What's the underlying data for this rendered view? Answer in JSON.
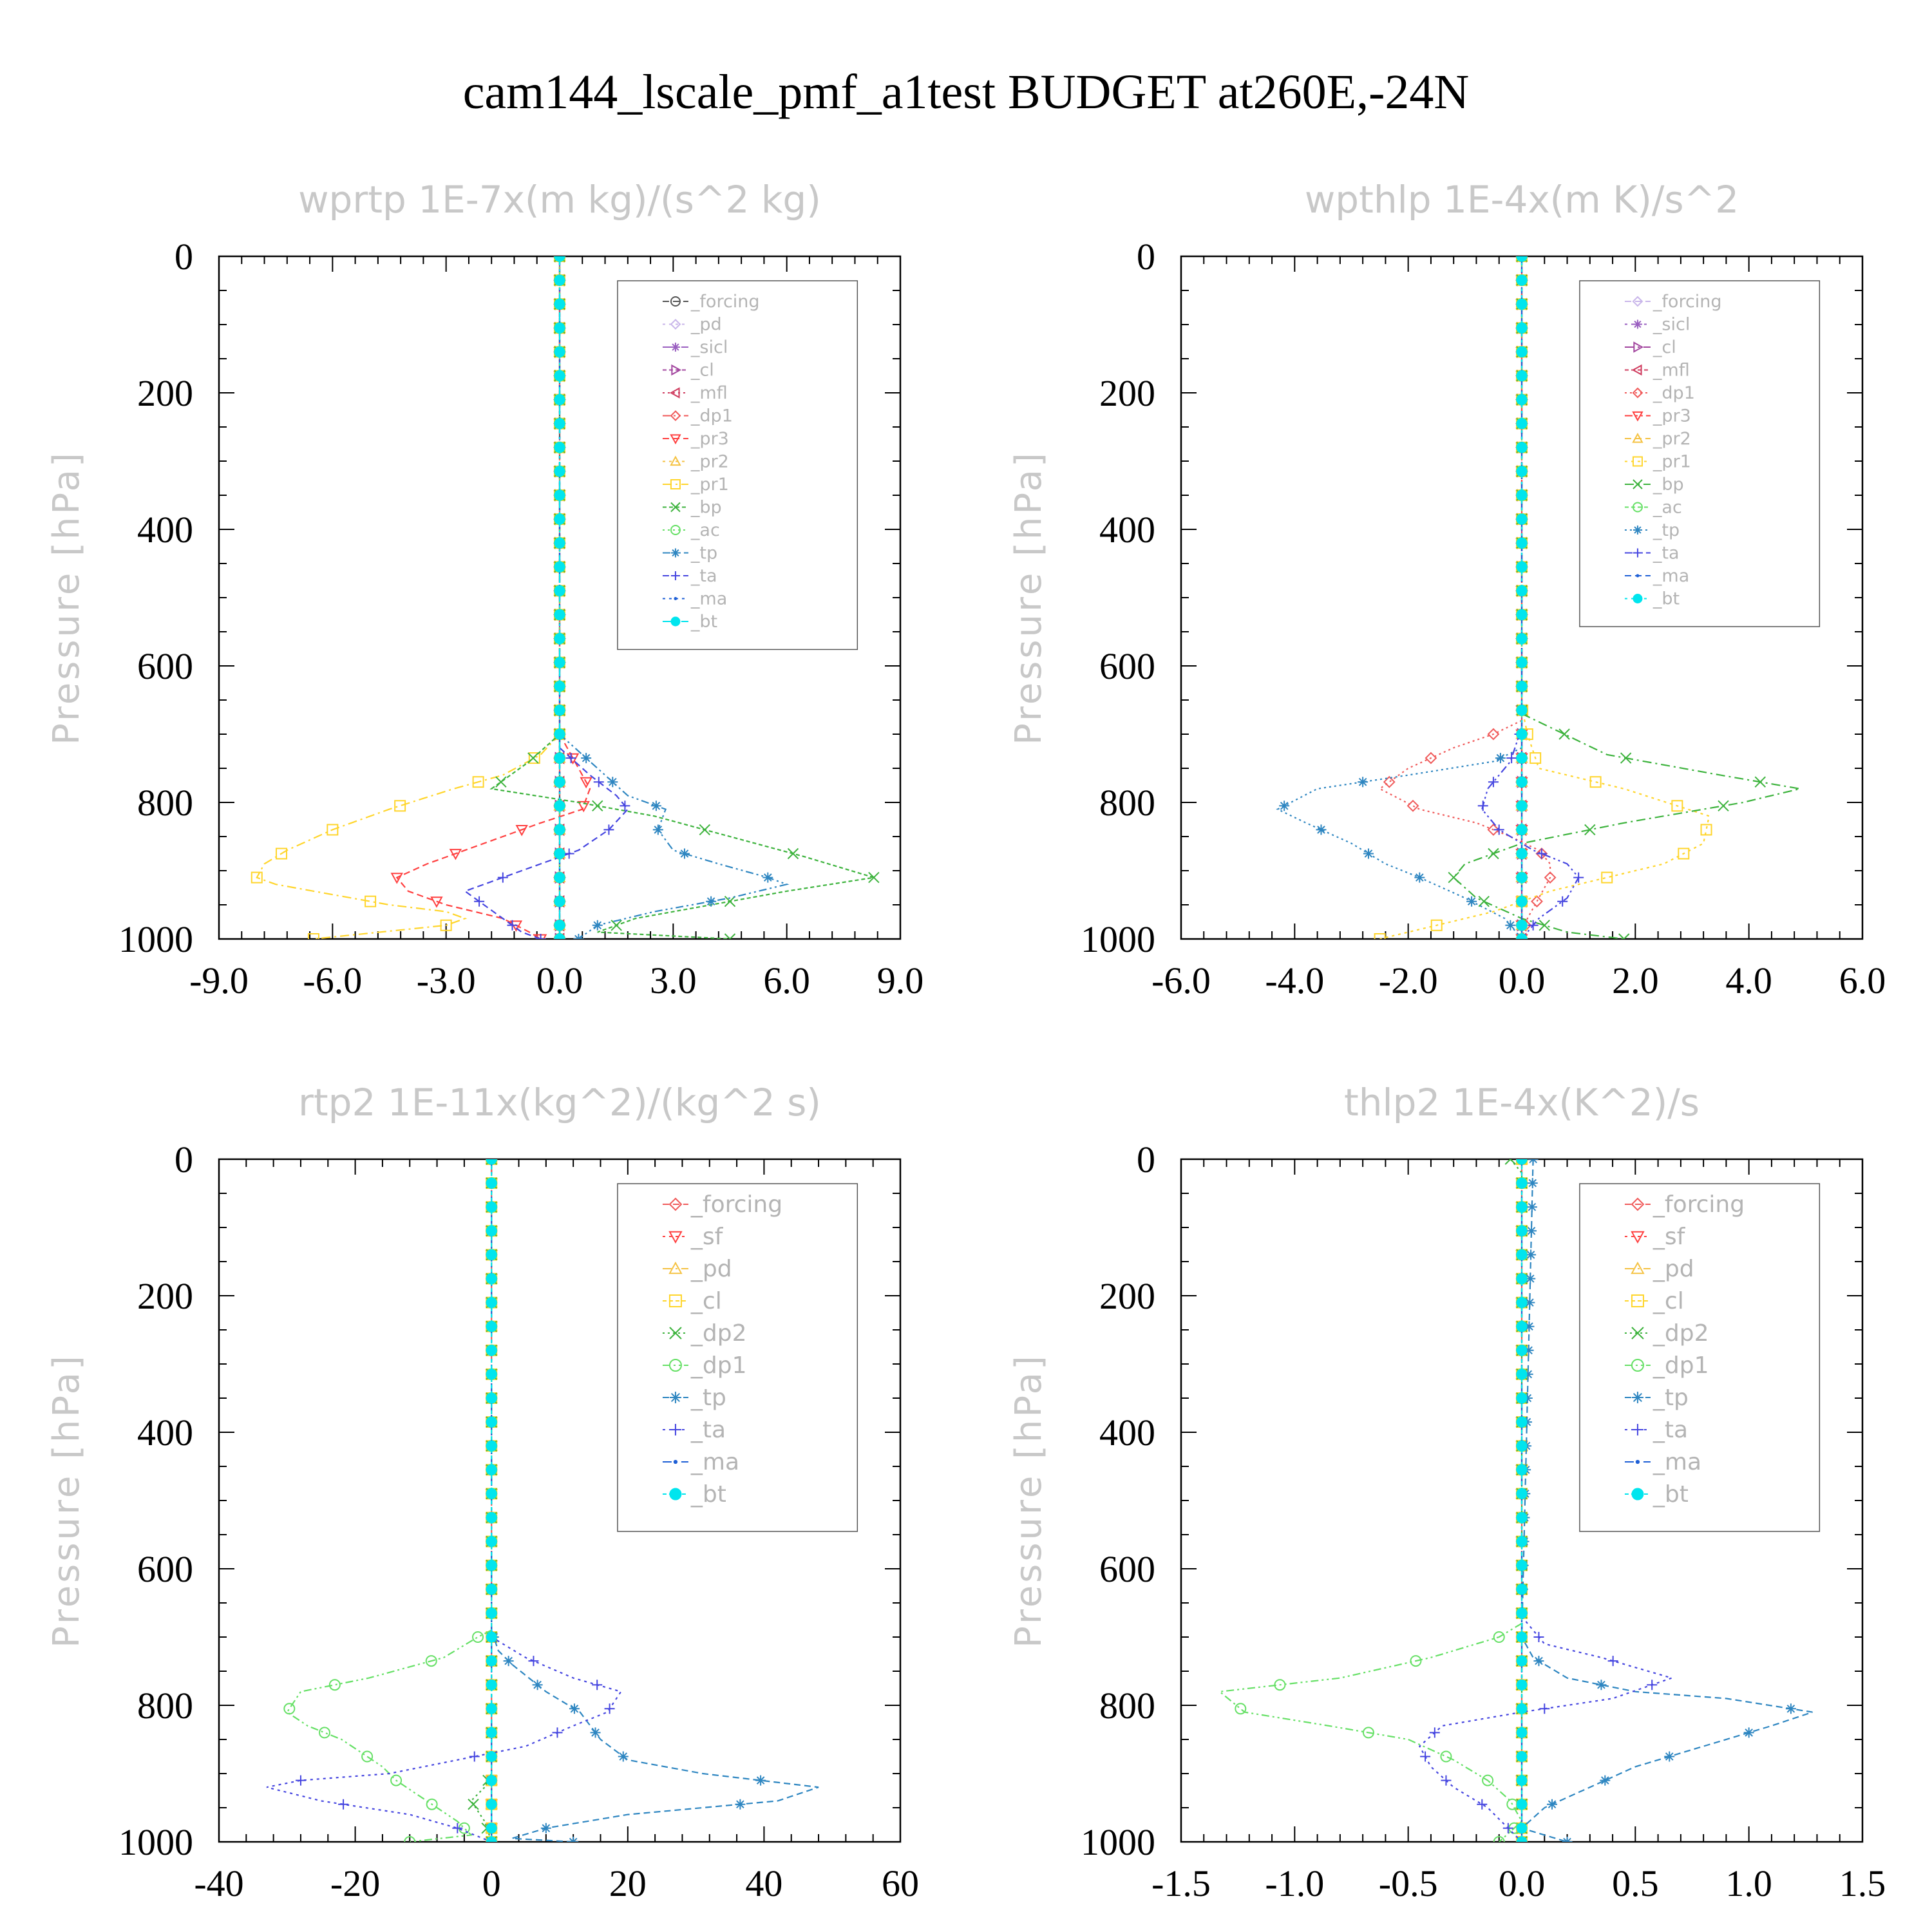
{
  "title": "cam144_lscale_pmf_a1test  BUDGET at260E,-24N",
  "chart_data": [
    {
      "type": "line",
      "title": "wprtp  1E-7x(m kg)/(s^2 kg)",
      "ylabel": "Pressure [hPa]",
      "xlim": [
        -9,
        9
      ],
      "ylim": [
        0,
        1000
      ],
      "xticks": [
        "-9.0",
        "-6.0",
        "-3.0",
        "0.0",
        "3.0",
        "6.0",
        "9.0"
      ],
      "yticks": [
        "0",
        "200",
        "400",
        "600",
        "800",
        "1000"
      ],
      "legend_position": "upper-right",
      "series": [
        {
          "name": "_forcing",
          "color": "#555555",
          "marker": "circle",
          "x": [
            0,
            0
          ],
          "y": [
            0,
            1000
          ]
        },
        {
          "name": "_pd",
          "color": "#c9b6ea",
          "marker": "diamond",
          "x": [
            0,
            0
          ],
          "y": [
            0,
            1000
          ]
        },
        {
          "name": "_sicl",
          "color": "#9a5fc0",
          "marker": "star",
          "x": [
            0,
            0
          ],
          "y": [
            0,
            1000
          ]
        },
        {
          "name": "_cl",
          "color": "#a2459e",
          "marker": "triright",
          "x": [
            0,
            0
          ],
          "y": [
            0,
            1000
          ]
        },
        {
          "name": "_mfl",
          "color": "#cf3b5e",
          "marker": "trileft",
          "x": [
            0,
            0
          ],
          "y": [
            0,
            1000
          ]
        },
        {
          "name": "_dp1",
          "color": "#f05a5a",
          "marker": "diamond",
          "x": [
            0,
            0
          ],
          "y": [
            0,
            1000
          ]
        },
        {
          "name": "_pr3",
          "color": "#ff4040",
          "marker": "tridown",
          "x": [
            0,
            0.3,
            0.8,
            0.6,
            -0.5,
            -1.5,
            -2.5,
            -3.5,
            -4.3,
            -4.0,
            -3.0,
            -1.5,
            -0.8,
            -0.5
          ],
          "y": [
            700,
            730,
            780,
            810,
            830,
            850,
            870,
            890,
            910,
            930,
            950,
            970,
            990,
            1000
          ]
        },
        {
          "name": "_pr2",
          "color": "#f5c242",
          "marker": "triup",
          "x": [
            0,
            0
          ],
          "y": [
            0,
            1000
          ]
        },
        {
          "name": "_pr1",
          "color": "#ffd52b",
          "marker": "square",
          "x": [
            0,
            -0.5,
            -1.5,
            -2.8,
            -4.5,
            -6.0,
            -7.2,
            -7.8,
            -8.0,
            -7.5,
            -6.5,
            -4.5,
            -3.0,
            -2.5,
            -3.0,
            -6.5
          ],
          "y": [
            700,
            730,
            760,
            780,
            810,
            840,
            870,
            890,
            910,
            920,
            930,
            950,
            960,
            970,
            980,
            1000
          ]
        },
        {
          "name": "_bp",
          "color": "#3db33d",
          "marker": "x",
          "x": [
            0,
            -0.8,
            -1.8,
            0.5,
            2.5,
            4.5,
            6.5,
            8.3,
            6.0,
            4.0,
            2.0,
            1.0,
            4.5
          ],
          "y": [
            700,
            740,
            780,
            800,
            820,
            850,
            880,
            910,
            930,
            950,
            970,
            990,
            1000
          ]
        },
        {
          "name": "_ac",
          "color": "#66e066",
          "marker": "circle",
          "x": [
            0,
            0
          ],
          "y": [
            0,
            1000
          ]
        },
        {
          "name": "_tp",
          "color": "#2e86c1",
          "marker": "asterisk",
          "x": [
            0,
            0.8,
            1.8,
            2.8,
            2.6,
            3.0,
            4.2,
            5.5,
            6.0,
            4.5,
            2.5,
            1.0,
            0.5
          ],
          "y": [
            700,
            740,
            790,
            810,
            840,
            870,
            890,
            910,
            920,
            940,
            960,
            980,
            1000
          ]
        },
        {
          "name": "_ta",
          "color": "#4545e0",
          "marker": "plus",
          "x": [
            0,
            0.8,
            1.5,
            1.8,
            1.3,
            0.5,
            -0.5,
            -1.5,
            -2.5,
            -2.0,
            -1.5,
            -1.0,
            -0.5
          ],
          "y": [
            720,
            760,
            790,
            810,
            840,
            870,
            890,
            910,
            930,
            950,
            970,
            990,
            1000
          ]
        },
        {
          "name": "_ma",
          "color": "#1e5fd6",
          "marker": "dot",
          "x": [
            0,
            0
          ],
          "y": [
            0,
            1000
          ]
        },
        {
          "name": "_bt",
          "color": "#00e5ee",
          "marker": "filledcircle",
          "x": [
            0,
            0
          ],
          "y": [
            0,
            1000
          ]
        }
      ]
    },
    {
      "type": "line",
      "title": "wpthlp  1E-4x(m K)/s^2",
      "ylabel": "Pressure [hPa]",
      "xlim": [
        -6,
        6
      ],
      "ylim": [
        0,
        1000
      ],
      "xticks": [
        "-6.0",
        "-4.0",
        "-2.0",
        "0.0",
        "2.0",
        "4.0",
        "6.0"
      ],
      "yticks": [
        "0",
        "200",
        "400",
        "600",
        "800",
        "1000"
      ],
      "legend_position": "upper-right",
      "series": [
        {
          "name": "_forcing",
          "color": "#c9b6ea",
          "marker": "diamond",
          "x": [
            0,
            0
          ],
          "y": [
            0,
            1000
          ]
        },
        {
          "name": "_sicl",
          "color": "#9a5fc0",
          "marker": "star",
          "x": [
            0,
            0
          ],
          "y": [
            0,
            1000
          ]
        },
        {
          "name": "_cl",
          "color": "#a2459e",
          "marker": "triright",
          "x": [
            0,
            0
          ],
          "y": [
            0,
            1000
          ]
        },
        {
          "name": "_mfl",
          "color": "#cf3b5e",
          "marker": "trileft",
          "x": [
            0,
            0
          ],
          "y": [
            0,
            1000
          ]
        },
        {
          "name": "_dp1",
          "color": "#f05a5a",
          "marker": "diamond",
          "x": [
            0,
            -0.5,
            -1.2,
            -2.0,
            -2.5,
            -1.8,
            -0.8,
            -0.2,
            0.3,
            0.5,
            0.5,
            0.3,
            0.1,
            0
          ],
          "y": [
            680,
            700,
            720,
            750,
            780,
            810,
            830,
            850,
            870,
            890,
            910,
            940,
            970,
            1000
          ]
        },
        {
          "name": "_pr3",
          "color": "#ff4040",
          "marker": "tridown",
          "x": [
            0,
            0
          ],
          "y": [
            0,
            1000
          ]
        },
        {
          "name": "_pr2",
          "color": "#f5c242",
          "marker": "triup",
          "x": [
            0,
            0
          ],
          "y": [
            0,
            1000
          ]
        },
        {
          "name": "_pr1",
          "color": "#ffd52b",
          "marker": "square",
          "x": [
            0,
            0.1,
            0.3,
            1.8,
            3.3,
            3.2,
            2.5,
            1.5,
            0.5,
            -0.5,
            -1.5,
            -2.5
          ],
          "y": [
            660,
            700,
            750,
            780,
            820,
            860,
            890,
            910,
            930,
            960,
            980,
            1000
          ]
        },
        {
          "name": "_bp",
          "color": "#3db33d",
          "marker": "x",
          "x": [
            0,
            1.5,
            3.5,
            4.9,
            3.9,
            1.8,
            0,
            -1.0,
            -1.2,
            -0.8,
            0,
            0.8,
            1.8
          ],
          "y": [
            670,
            730,
            760,
            780,
            800,
            830,
            860,
            890,
            910,
            940,
            970,
            990,
            1000
          ]
        },
        {
          "name": "_ac",
          "color": "#66e066",
          "marker": "circle",
          "x": [
            0,
            0
          ],
          "y": [
            0,
            1000
          ]
        },
        {
          "name": "_tp",
          "color": "#2e86c1",
          "marker": "asterisk",
          "x": [
            0,
            -0.5,
            -2.0,
            -3.6,
            -4.3,
            -3.8,
            -3.0,
            -2.4,
            -1.8,
            -1.0,
            -0.3,
            0
          ],
          "y": [
            720,
            740,
            760,
            780,
            810,
            830,
            860,
            890,
            910,
            940,
            970,
            1000
          ]
        },
        {
          "name": "_ta",
          "color": "#4545e0",
          "marker": "plus",
          "x": [
            0,
            -0.2,
            -0.6,
            -0.7,
            -0.4,
            0.2,
            0.8,
            1.0,
            0.8,
            0.3,
            0
          ],
          "y": [
            690,
            740,
            780,
            810,
            840,
            870,
            890,
            910,
            940,
            970,
            1000
          ]
        },
        {
          "name": "_ma",
          "color": "#1e5fd6",
          "marker": "dot",
          "x": [
            0,
            0
          ],
          "y": [
            0,
            1000
          ]
        },
        {
          "name": "_bt",
          "color": "#00e5ee",
          "marker": "filledcircle",
          "x": [
            0,
            0
          ],
          "y": [
            0,
            1000
          ]
        }
      ]
    },
    {
      "type": "line",
      "title": "rtp2  1E-11x(kg^2)/(kg^2 s)",
      "ylabel": "Pressure [hPa]",
      "xlim": [
        -40,
        60
      ],
      "ylim": [
        0,
        1000
      ],
      "xticks": [
        "-40",
        "-20",
        "0",
        "20",
        "40",
        "60"
      ],
      "yticks": [
        "0",
        "200",
        "400",
        "600",
        "800",
        "1000"
      ],
      "legend_position": "upper-right",
      "series": [
        {
          "name": "_forcing",
          "color": "#f05a5a",
          "marker": "diamond",
          "x": [
            0,
            0
          ],
          "y": [
            0,
            1000
          ]
        },
        {
          "name": "_sf",
          "color": "#ff4040",
          "marker": "tridown",
          "x": [
            0,
            0
          ],
          "y": [
            0,
            1000
          ]
        },
        {
          "name": "_pd",
          "color": "#f5c242",
          "marker": "triup",
          "x": [
            0,
            0
          ],
          "y": [
            0,
            1000
          ]
        },
        {
          "name": "_cl",
          "color": "#ffd52b",
          "marker": "square",
          "x": [
            0,
            0
          ],
          "y": [
            0,
            1000
          ]
        },
        {
          "name": "_dp2",
          "color": "#3db33d",
          "marker": "x",
          "x": [
            0,
            -1,
            -3,
            -1,
            0
          ],
          "y": [
            900,
            920,
            940,
            970,
            1000
          ]
        },
        {
          "name": "_dp1",
          "color": "#66e066",
          "marker": "circle",
          "x": [
            0,
            -2,
            -7,
            -18,
            -28,
            -30,
            -27,
            -22,
            -19,
            -16,
            -14,
            -11,
            -8,
            -5,
            -3,
            -12
          ],
          "y": [
            690,
            700,
            730,
            760,
            780,
            810,
            830,
            850,
            870,
            890,
            910,
            930,
            950,
            970,
            990,
            1000
          ]
        },
        {
          "name": "_tp",
          "color": "#2e86c1",
          "marker": "asterisk",
          "x": [
            0,
            1,
            3,
            8,
            13,
            16,
            20,
            31,
            48,
            42,
            20,
            8,
            3,
            12
          ],
          "y": [
            690,
            720,
            740,
            780,
            810,
            850,
            880,
            900,
            920,
            940,
            960,
            980,
            995,
            1000
          ]
        },
        {
          "name": "_ta",
          "color": "#4545e0",
          "marker": "plus",
          "x": [
            0,
            5,
            12,
            19,
            17,
            12,
            5,
            -5,
            -15,
            -28,
            -33,
            -25,
            -12,
            -5,
            0
          ],
          "y": [
            700,
            730,
            760,
            780,
            810,
            830,
            860,
            880,
            900,
            910,
            920,
            940,
            960,
            980,
            1000
          ]
        },
        {
          "name": "_ma",
          "color": "#1e5fd6",
          "marker": "dot",
          "x": [
            0,
            0
          ],
          "y": [
            0,
            1000
          ]
        },
        {
          "name": "_bt",
          "color": "#00e5ee",
          "marker": "filledcircle",
          "x": [
            0,
            0
          ],
          "y": [
            0,
            1000
          ]
        }
      ]
    },
    {
      "type": "line",
      "title": "thlp2  1E-4x(K^2)/s",
      "ylabel": "Pressure [hPa]",
      "xlim": [
        -1.5,
        1.5
      ],
      "ylim": [
        0,
        1000
      ],
      "xticks": [
        "-1.5",
        "-1.0",
        "-0.5",
        "0.0",
        "0.5",
        "1.0",
        "1.5"
      ],
      "yticks": [
        "0",
        "200",
        "400",
        "600",
        "800",
        "1000"
      ],
      "legend_position": "upper-right",
      "series": [
        {
          "name": "_forcing",
          "color": "#f05a5a",
          "marker": "diamond",
          "x": [
            0,
            0
          ],
          "y": [
            0,
            1000
          ]
        },
        {
          "name": "_sf",
          "color": "#ff4040",
          "marker": "tridown",
          "x": [
            0,
            0
          ],
          "y": [
            0,
            1000
          ]
        },
        {
          "name": "_pd",
          "color": "#f5c242",
          "marker": "triup",
          "x": [
            0,
            0
          ],
          "y": [
            0,
            1000
          ]
        },
        {
          "name": "_cl",
          "color": "#ffd52b",
          "marker": "square",
          "x": [
            0,
            0
          ],
          "y": [
            0,
            1000
          ]
        },
        {
          "name": "_dp2",
          "color": "#3db33d",
          "marker": "x",
          "x": [
            -0.05,
            0,
            0
          ],
          "y": [
            0,
            20,
            1000
          ]
        },
        {
          "name": "_dp1",
          "color": "#66e066",
          "marker": "circle",
          "x": [
            0,
            -0.1,
            -0.4,
            -0.8,
            -1.33,
            -1.22,
            -0.85,
            -0.5,
            -0.3,
            -0.15,
            -0.05,
            0,
            -0.1
          ],
          "y": [
            680,
            700,
            730,
            760,
            780,
            810,
            830,
            850,
            880,
            910,
            940,
            970,
            1000
          ]
        },
        {
          "name": "_tp",
          "color": "#2e86c1",
          "marker": "asterisk",
          "x": [
            0.05,
            0,
            0.05,
            0.2,
            0.5,
            0.9,
            1.28,
            1.1,
            0.8,
            0.5,
            0.3,
            0.1,
            0,
            0.2
          ],
          "y": [
            0,
            700,
            730,
            760,
            780,
            790,
            810,
            830,
            860,
            890,
            920,
            950,
            980,
            1000
          ]
        },
        {
          "name": "_ta",
          "color": "#4545e0",
          "marker": "plus",
          "x": [
            0,
            0.1,
            0.35,
            0.66,
            0.4,
            0,
            -0.35,
            -0.45,
            -0.4,
            -0.3,
            -0.15,
            0
          ],
          "y": [
            670,
            710,
            730,
            760,
            790,
            810,
            830,
            860,
            890,
            920,
            950,
            1000
          ]
        },
        {
          "name": "_ma",
          "color": "#1e5fd6",
          "marker": "dot",
          "x": [
            0,
            0
          ],
          "y": [
            0,
            1000
          ]
        },
        {
          "name": "_bt",
          "color": "#00e5ee",
          "marker": "filledcircle",
          "x": [
            0,
            0
          ],
          "y": [
            0,
            1000
          ]
        }
      ]
    }
  ]
}
